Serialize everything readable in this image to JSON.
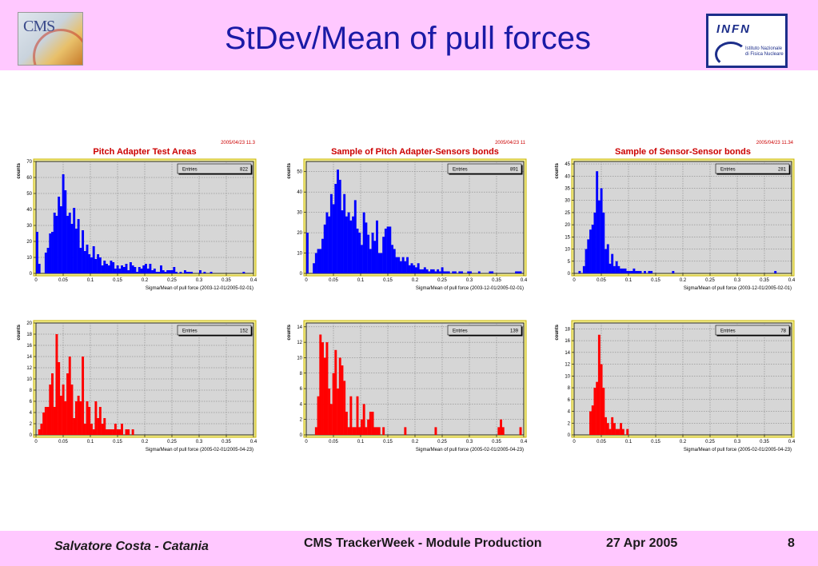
{
  "header": {
    "title": "StDev/Mean of pull forces",
    "logo_left": "CMS",
    "logo_right": "INFN",
    "logo_right_sub": "Istituto Nazionale di Fisica Nucleare"
  },
  "footer": {
    "author": "Salvatore Costa - Catania",
    "event": "CMS TrackerWeek - Module Production",
    "date": "27 Apr 2005",
    "page": "8"
  },
  "colors": {
    "blue": "#0000ff",
    "red": "#ff0000",
    "title_red": "#cc0000",
    "header_bg": "#ffc8ff"
  },
  "chart_data": [
    {
      "type": "bar",
      "title": "Pitch Adapter Test Areas",
      "timestamp": "2005/04/23  11.3",
      "ylabel": "counts",
      "xlabel": "Sigma/Mean of pull force   (2003-12-01/2005-02-01)",
      "stats_label": "Entries",
      "entries": "822",
      "xlim": [
        0,
        0.4
      ],
      "ylim": [
        0,
        70
      ],
      "yticks": [
        0,
        10,
        20,
        30,
        40,
        50,
        60,
        70
      ],
      "xticks": [
        "0",
        "0.05",
        "0.1",
        "0.15",
        "0.2",
        "0.25",
        "0.3",
        "0.35",
        "0.4"
      ],
      "color": "#0000ff",
      "bin_width": 0.004,
      "values": [
        26,
        6,
        0,
        0,
        13,
        16,
        25,
        26,
        38,
        36,
        48,
        42,
        62,
        52,
        36,
        38,
        31,
        41,
        28,
        34,
        16,
        27,
        14,
        18,
        12,
        10,
        17,
        9,
        12,
        10,
        5,
        8,
        6,
        5,
        8,
        7,
        3,
        5,
        3,
        5,
        4,
        6,
        2,
        7,
        5,
        4,
        1,
        4,
        3,
        5,
        6,
        3,
        6,
        2,
        3,
        1,
        1,
        5,
        2,
        1,
        2,
        2,
        2,
        4,
        1,
        0,
        1,
        0,
        2,
        1,
        1,
        1,
        0,
        0,
        0,
        2,
        0,
        1,
        0,
        0,
        1,
        0,
        0,
        0,
        0,
        0,
        0,
        0,
        0,
        0,
        0,
        0,
        0,
        0,
        0,
        1,
        0,
        0,
        0,
        0
      ]
    },
    {
      "type": "bar",
      "title": "Sample of Pitch Adapter-Sensors bonds",
      "timestamp": "2005/04/23  11",
      "ylabel": "counts",
      "xlabel": "Sigma/Mean of pull force   (2003-12-01/2005-02-01)",
      "stats_label": "Entries",
      "entries": "891",
      "xlim": [
        0,
        0.4
      ],
      "ylim": [
        0,
        55
      ],
      "yticks": [
        0,
        10,
        20,
        30,
        40,
        50
      ],
      "xticks": [
        "0",
        "0.05",
        "0.1",
        "0.15",
        "0.2",
        "0.25",
        "0.3",
        "0.35",
        "0.4"
      ],
      "color": "#0000ff",
      "bin_width": 0.004,
      "values": [
        20,
        0,
        0,
        5,
        10,
        12,
        12,
        17,
        24,
        30,
        28,
        39,
        34,
        44,
        51,
        46,
        31,
        39,
        28,
        30,
        26,
        28,
        36,
        22,
        20,
        14,
        30,
        25,
        19,
        12,
        20,
        16,
        26,
        10,
        10,
        18,
        22,
        23,
        23,
        14,
        12,
        8,
        8,
        6,
        8,
        6,
        8,
        4,
        5,
        4,
        3,
        5,
        2,
        2,
        3,
        2,
        1,
        2,
        2,
        1,
        2,
        1,
        3,
        1,
        1,
        1,
        0,
        1,
        1,
        0,
        1,
        1,
        0,
        0,
        1,
        1,
        0,
        0,
        0,
        1,
        0,
        0,
        0,
        0,
        1,
        1,
        0,
        0,
        0,
        0,
        0,
        0,
        0,
        0,
        0,
        0,
        1,
        1,
        1,
        0
      ]
    },
    {
      "type": "bar",
      "title": "Sample of Sensor-Sensor bonds",
      "timestamp": "2005/04/23  11.34",
      "ylabel": "counts",
      "xlabel": "Sigma/Mean of pull force   (2003-12-01/2005-02-01)",
      "stats_label": "Entries",
      "entries": "281",
      "xlim": [
        0,
        0.4
      ],
      "ylim": [
        0,
        46
      ],
      "yticks": [
        0,
        5,
        10,
        15,
        20,
        25,
        30,
        35,
        40,
        45
      ],
      "xticks": [
        "0",
        "0.05",
        "0.1",
        "0.15",
        "0.2",
        "0.25",
        "0.3",
        "0.35",
        "0.4"
      ],
      "color": "#0000ff",
      "bin_width": 0.004,
      "values": [
        0,
        0,
        1,
        0,
        3,
        10,
        14,
        18,
        20,
        25,
        42,
        30,
        35,
        25,
        10,
        12,
        4,
        8,
        3,
        5,
        3,
        2,
        2,
        2,
        1,
        1,
        1,
        2,
        1,
        1,
        1,
        0,
        1,
        0,
        1,
        1,
        0,
        0,
        0,
        0,
        0,
        0,
        0,
        0,
        0,
        1,
        0,
        0,
        0,
        0,
        0,
        0,
        0,
        0,
        0,
        0,
        0,
        0,
        0,
        0,
        0,
        0,
        0,
        0,
        0,
        0,
        0,
        0,
        0,
        0,
        0,
        0,
        0,
        0,
        0,
        0,
        0,
        0,
        0,
        0,
        0,
        0,
        0,
        0,
        0,
        0,
        0,
        0,
        0,
        0,
        0,
        0,
        1,
        0,
        0,
        0,
        0,
        0,
        0,
        0
      ]
    },
    {
      "type": "bar",
      "title": "",
      "timestamp": "",
      "ylabel": "counts",
      "xlabel": "Sigma/Mean of pull force   (2005-02-01/2005-04-23)",
      "stats_label": "Entries",
      "entries": "152",
      "xlim": [
        0,
        0.4
      ],
      "ylim": [
        0,
        20
      ],
      "yticks": [
        0,
        2,
        4,
        6,
        8,
        10,
        12,
        14,
        16,
        18,
        20
      ],
      "xticks": [
        "0",
        "0.05",
        "0.1",
        "0.15",
        "0.2",
        "0.25",
        "0.3",
        "0.35",
        "0.4"
      ],
      "color": "#ff0000",
      "bin_width": 0.004,
      "values": [
        0,
        1,
        2,
        4,
        5,
        5,
        9,
        11,
        5,
        18,
        13,
        7,
        9,
        6,
        11,
        14,
        9,
        3,
        6,
        7,
        6,
        14,
        2,
        6,
        5,
        2,
        1,
        6,
        3,
        5,
        2,
        3,
        1,
        1,
        1,
        1,
        2,
        1,
        1,
        2,
        0,
        1,
        1,
        0,
        1,
        0,
        0,
        0,
        0,
        0,
        0,
        0,
        0,
        0,
        0,
        0,
        0,
        0,
        0,
        0,
        0,
        0,
        0,
        0,
        0,
        0,
        0,
        0,
        0,
        0,
        0,
        0,
        0,
        0,
        0,
        0,
        0,
        0,
        0,
        0,
        0,
        0,
        0,
        0,
        0,
        0,
        0,
        0,
        0,
        0,
        0,
        0,
        0,
        0,
        0,
        0,
        0,
        0,
        0,
        0
      ]
    },
    {
      "type": "bar",
      "title": "",
      "timestamp": "",
      "ylabel": "counts",
      "xlabel": "Sigma/Mean of pull force   (2005-02-01/2005-04-23)",
      "stats_label": "Entries",
      "entries": "139",
      "xlim": [
        0,
        0.4
      ],
      "ylim": [
        0,
        14.5
      ],
      "yticks": [
        0,
        2,
        4,
        6,
        8,
        10,
        12,
        14
      ],
      "xticks": [
        "0",
        "0.05",
        "0.1",
        "0.15",
        "0.2",
        "0.25",
        "0.3",
        "0.35",
        "0.4"
      ],
      "color": "#ff0000",
      "bin_width": 0.004,
      "values": [
        0,
        0,
        0,
        0,
        1,
        5,
        13,
        12,
        10,
        12,
        6,
        4,
        8,
        11,
        6,
        10,
        9,
        7,
        3,
        1,
        5,
        1,
        1,
        5,
        1,
        2,
        4,
        1,
        2,
        3,
        3,
        1,
        1,
        1,
        0,
        1,
        0,
        0,
        0,
        0,
        0,
        0,
        0,
        0,
        0,
        1,
        0,
        0,
        0,
        0,
        0,
        0,
        0,
        0,
        0,
        0,
        0,
        0,
        0,
        1,
        0,
        0,
        0,
        0,
        0,
        0,
        0,
        0,
        0,
        0,
        0,
        0,
        0,
        0,
        0,
        0,
        0,
        0,
        0,
        0,
        0,
        0,
        0,
        0,
        0,
        0,
        0,
        0,
        1,
        2,
        1,
        0,
        0,
        0,
        0,
        0,
        0,
        0,
        1,
        0
      ]
    },
    {
      "type": "bar",
      "title": "",
      "timestamp": "",
      "ylabel": "counts",
      "xlabel": "Sigma/Mean of pull force   (2005-02-01/2005-04-23)",
      "stats_label": "Entries",
      "entries": "78",
      "xlim": [
        0,
        0.4
      ],
      "ylim": [
        0,
        19
      ],
      "yticks": [
        0,
        2,
        4,
        6,
        8,
        10,
        12,
        14,
        16,
        18
      ],
      "xticks": [
        "0",
        "0.05",
        "0.1",
        "0.15",
        "0.2",
        "0.25",
        "0.3",
        "0.35",
        "0.4"
      ],
      "color": "#ff0000",
      "bin_width": 0.004,
      "values": [
        0,
        0,
        0,
        0,
        0,
        0,
        0,
        4,
        5,
        8,
        9,
        17,
        12,
        8,
        3,
        2,
        1,
        3,
        2,
        1,
        1,
        2,
        1,
        0,
        1,
        0,
        0,
        0,
        0,
        0,
        0,
        0,
        0,
        0,
        0,
        0,
        0,
        0,
        0,
        0,
        0,
        0,
        0,
        0,
        0,
        0,
        0,
        0,
        0,
        0,
        0,
        0,
        0,
        0,
        0,
        0,
        0,
        0,
        0,
        0,
        0,
        0,
        0,
        0,
        0,
        0,
        0,
        0,
        0,
        0,
        0,
        0,
        0,
        0,
        0,
        0,
        0,
        0,
        0,
        0,
        0,
        0,
        0,
        0,
        0,
        0,
        0,
        0,
        0,
        0,
        0,
        0,
        0,
        0,
        0,
        0,
        0,
        0,
        0,
        0
      ]
    }
  ]
}
